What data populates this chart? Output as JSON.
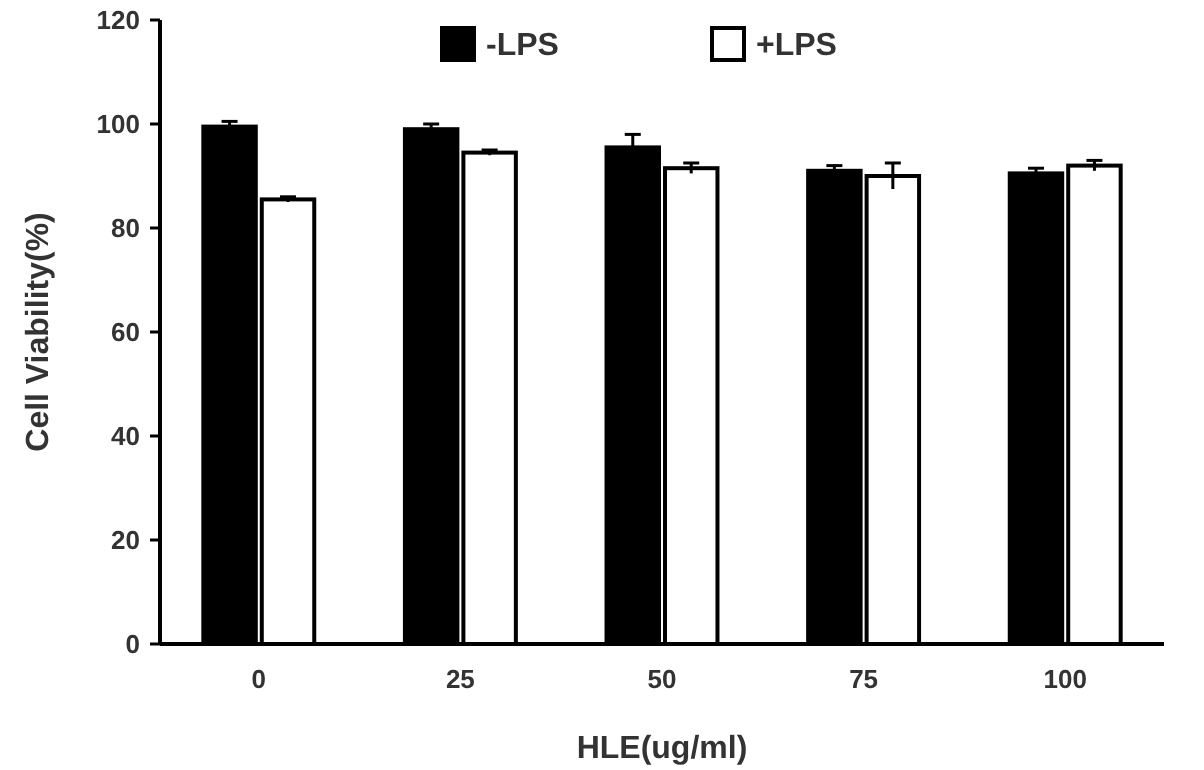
{
  "chart_data": {
    "type": "bar",
    "xlabel": "HLE(ug/ml)",
    "ylabel": "Cell Viability(%)",
    "categories": [
      "0",
      "25",
      "50",
      "75",
      "100"
    ],
    "series": [
      {
        "name": "-LPS",
        "color": "#000000",
        "values": [
          99.5,
          99,
          95.5,
          91,
          90.5
        ],
        "errors": [
          1,
          1,
          2.5,
          1,
          1
        ]
      },
      {
        "name": "+LPS",
        "color": "#ffffff",
        "values": [
          85.5,
          94.5,
          91.5,
          90,
          92
        ],
        "errors": [
          0.5,
          0.5,
          1,
          2.5,
          1
        ]
      }
    ],
    "ylim": [
      0,
      120
    ],
    "yticks": [
      0,
      20,
      40,
      60,
      80,
      100,
      120
    ],
    "grid": false,
    "legend": "top"
  }
}
